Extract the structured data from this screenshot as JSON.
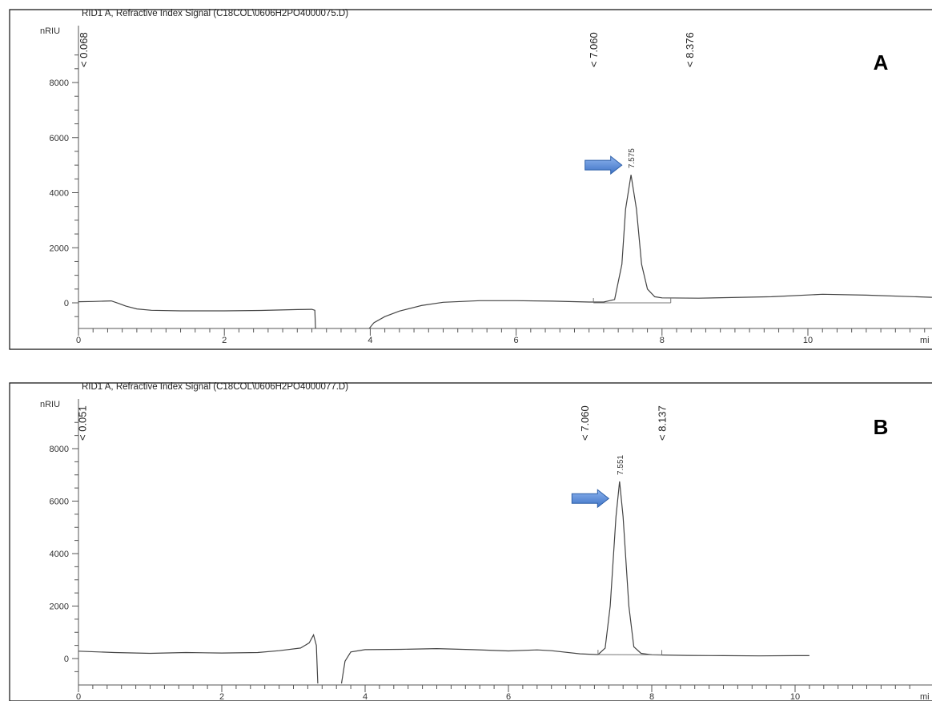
{
  "chart_data": [
    {
      "type": "line",
      "panel_label": "A",
      "title": "RID1 A, Refractive Index Signal (C18COL\\0606H2PO4000075.D)",
      "y_unit": "nRIU",
      "x_unit": "mi",
      "xlim": [
        0,
        11.7
      ],
      "ylim": [
        -950,
        9600
      ],
      "x_ticks": [
        {
          "value": 0,
          "label": "0"
        },
        {
          "value": 2,
          "label": "2"
        },
        {
          "value": 4,
          "label": "4"
        },
        {
          "value": 6,
          "label": "6"
        },
        {
          "value": 8,
          "label": "8"
        },
        {
          "value": 10,
          "label": "10"
        }
      ],
      "y_ticks": [
        {
          "value": 0,
          "label": "0"
        },
        {
          "value": 2000,
          "label": "2000"
        },
        {
          "value": 4000,
          "label": "4000"
        },
        {
          "value": 6000,
          "label": "6000"
        },
        {
          "value": 8000,
          "label": "8000"
        }
      ],
      "segments": [
        [
          [
            0,
            40
          ],
          [
            0.2,
            50
          ],
          [
            0.35,
            60
          ],
          [
            0.45,
            70
          ],
          [
            0.55,
            -20
          ],
          [
            0.65,
            -120
          ],
          [
            0.8,
            -220
          ],
          [
            1.0,
            -270
          ],
          [
            1.4,
            -290
          ],
          [
            2.0,
            -290
          ],
          [
            2.5,
            -275
          ],
          [
            3.0,
            -245
          ],
          [
            3.2,
            -235
          ],
          [
            3.24,
            -270
          ],
          [
            3.25,
            -950
          ]
        ],
        [
          [
            3.98,
            -950
          ],
          [
            4.05,
            -720
          ],
          [
            4.2,
            -500
          ],
          [
            4.4,
            -300
          ],
          [
            4.7,
            -100
          ],
          [
            5.0,
            20
          ],
          [
            5.5,
            80
          ],
          [
            6.0,
            80
          ],
          [
            6.5,
            60
          ],
          [
            7.0,
            30
          ],
          [
            7.2,
            30
          ],
          [
            7.35,
            120
          ],
          [
            7.45,
            1400
          ],
          [
            7.5,
            3400
          ],
          [
            7.575,
            4650
          ],
          [
            7.65,
            3400
          ],
          [
            7.72,
            1400
          ],
          [
            7.8,
            500
          ],
          [
            7.9,
            220
          ],
          [
            8.0,
            180
          ],
          [
            8.5,
            170
          ],
          [
            9.5,
            220
          ],
          [
            10.2,
            310
          ],
          [
            10.8,
            280
          ],
          [
            11.7,
            200
          ]
        ]
      ],
      "baseline": [
        [
          7.06,
          0
        ],
        [
          8.12,
          0
        ]
      ],
      "peak_label": {
        "x": 7.575,
        "y": 4650,
        "text": "7.575"
      },
      "arrow": {
        "x": 7.45,
        "y": 5000
      },
      "markers": [
        {
          "x": 0.068,
          "text": "0.068"
        },
        {
          "x": 7.06,
          "text": "7.060"
        },
        {
          "x": 8.376,
          "text": "8.376"
        }
      ]
    },
    {
      "type": "line",
      "panel_label": "B",
      "title": "RID1 A, Refractive Index Signal (C18COL\\0606H2PO4000077.D)",
      "y_unit": "nRIU",
      "x_unit": "mi",
      "xlim": [
        0,
        11.7
      ],
      "ylim": [
        -950,
        9600
      ],
      "x_ticks": [
        {
          "value": 0,
          "label": "0"
        },
        {
          "value": 2,
          "label": "2"
        },
        {
          "value": 4,
          "label": "4"
        },
        {
          "value": 6,
          "label": "6"
        },
        {
          "value": 8,
          "label": "8"
        },
        {
          "value": 10,
          "label": "10"
        }
      ],
      "y_ticks": [
        {
          "value": 0,
          "label": "0"
        },
        {
          "value": 2000,
          "label": "2000"
        },
        {
          "value": 4000,
          "label": "4000"
        },
        {
          "value": 6000,
          "label": "6000"
        },
        {
          "value": 8000,
          "label": "8000"
        }
      ],
      "segments": [
        [
          [
            0,
            280
          ],
          [
            0.5,
            230
          ],
          [
            1.0,
            200
          ],
          [
            1.5,
            230
          ],
          [
            2.0,
            210
          ],
          [
            2.5,
            230
          ],
          [
            2.8,
            300
          ],
          [
            3.1,
            400
          ],
          [
            3.22,
            600
          ],
          [
            3.28,
            900
          ],
          [
            3.32,
            500
          ],
          [
            3.34,
            -950
          ]
        ],
        [
          [
            3.67,
            -950
          ],
          [
            3.72,
            -100
          ],
          [
            3.8,
            250
          ],
          [
            4.0,
            340
          ],
          [
            4.5,
            350
          ],
          [
            5.0,
            380
          ],
          [
            5.5,
            340
          ],
          [
            6.0,
            290
          ],
          [
            6.4,
            330
          ],
          [
            6.6,
            300
          ],
          [
            7.0,
            180
          ],
          [
            7.25,
            150
          ],
          [
            7.35,
            400
          ],
          [
            7.42,
            2000
          ],
          [
            7.5,
            5400
          ],
          [
            7.551,
            6750
          ],
          [
            7.6,
            5400
          ],
          [
            7.68,
            2000
          ],
          [
            7.75,
            450
          ],
          [
            7.85,
            200
          ],
          [
            8.0,
            140
          ],
          [
            8.5,
            120
          ],
          [
            9.0,
            110
          ],
          [
            9.5,
            100
          ],
          [
            10.0,
            110
          ],
          [
            10.2,
            110
          ]
        ]
      ],
      "baseline": [
        [
          7.25,
          150
        ],
        [
          8.14,
          140
        ]
      ],
      "peak_label": {
        "x": 7.551,
        "y": 6750,
        "text": "7.551"
      },
      "arrow": {
        "x": 7.4,
        "y": 6100
      },
      "markers": [
        {
          "x": 0.051,
          "text": "0.051"
        },
        {
          "x": 7.06,
          "text": "7.060"
        },
        {
          "x": 8.137,
          "text": "8.137"
        }
      ]
    }
  ],
  "colors": {
    "frame": "#111111",
    "trace": "#444444",
    "arrow_fill": "#4f86d8",
    "arrow_stroke": "#2d5fa8"
  }
}
